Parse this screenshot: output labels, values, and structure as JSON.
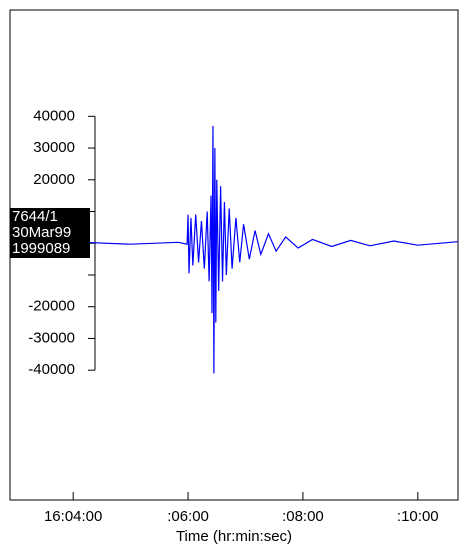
{
  "chart_data": {
    "type": "line",
    "station_labels": [
      "7644/1",
      "30Mar99",
      "1999089"
    ],
    "x_label": "Time (hr:min:sec)",
    "xlim": [
      57774,
      58242
    ],
    "xticks": [
      {
        "value": 57840,
        "label": "16:04:00"
      },
      {
        "value": 57960,
        "label": ":06:00"
      },
      {
        "value": 58080,
        "label": ":08:00"
      },
      {
        "value": 58200,
        "label": ":10:00"
      }
    ],
    "ylim": [
      -80900,
      73500
    ],
    "yticks": [
      40000,
      30000,
      20000,
      -20000,
      -30000,
      -40000
    ],
    "yminorticks": [
      10000,
      0,
      -10000
    ],
    "series": [
      {
        "color": "#0000ff",
        "x": [
          57774,
          57800,
          57850,
          57900,
          57950,
          57959,
          57960,
          57961,
          57963,
          57965,
          57968,
          57971,
          57974,
          57977,
          57980,
          57982,
          57984,
          57985,
          57986,
          57987,
          57988,
          57989,
          57990,
          57992,
          57994,
          57996,
          57998,
          58000,
          58003,
          58006,
          58010,
          58014,
          58018,
          58024,
          58030,
          58036,
          58044,
          58052,
          58062,
          58075,
          58090,
          58110,
          58130,
          58150,
          58175,
          58200,
          58242
        ],
        "values": [
          300,
          -300,
          300,
          -300,
          300,
          -300,
          9000,
          -9500,
          8000,
          -7000,
          9000,
          -6000,
          7000,
          -8000,
          10000,
          -12000,
          15000,
          -22000,
          37000,
          -41000,
          30000,
          -25000,
          20000,
          -15000,
          18000,
          -12000,
          13000,
          -10000,
          11000,
          -8000,
          8000,
          -6000,
          6000,
          -5000,
          4000,
          -3500,
          3000,
          -2500,
          2000,
          -1500,
          1200,
          -1000,
          900,
          -800,
          700,
          -600,
          500
        ]
      }
    ]
  }
}
